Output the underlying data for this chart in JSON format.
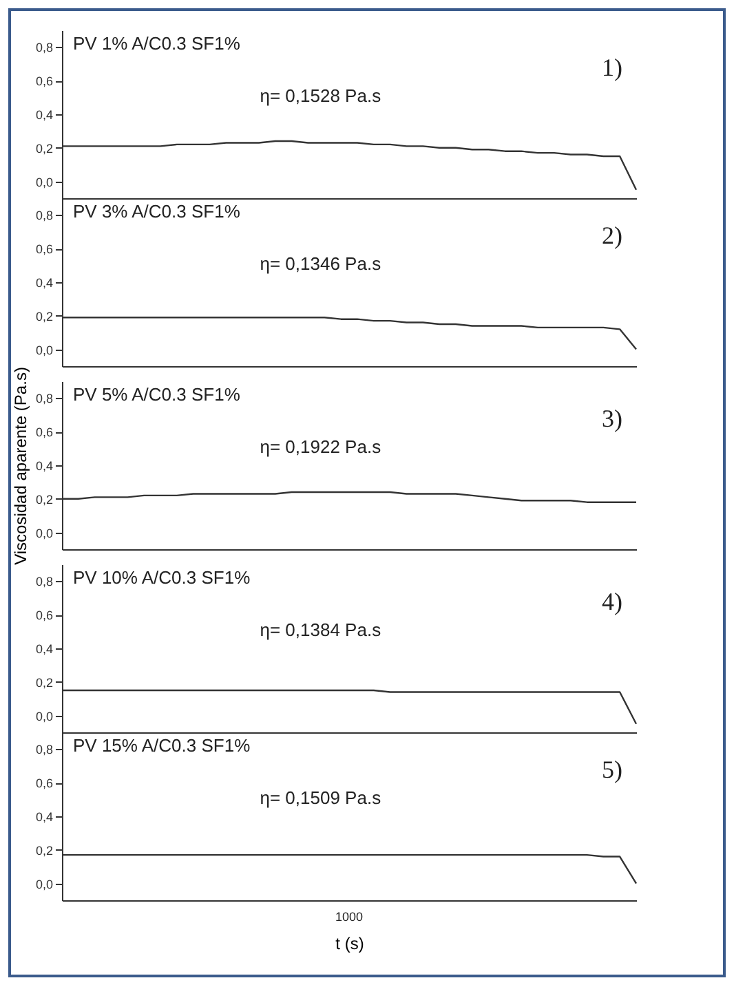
{
  "chart_data": [
    {
      "type": "line",
      "annotations": [
        "PV 1% A/C0.3 SF1%",
        "η= 0,1528 Pa.s",
        "1)"
      ],
      "categories": [
        null,
        null,
        null,
        null,
        null,
        null,
        null,
        null,
        null,
        null,
        null,
        null,
        null,
        null,
        null,
        null,
        null,
        null,
        null,
        null,
        null,
        null,
        null,
        null,
        null,
        null,
        null,
        null,
        null,
        null,
        null,
        null,
        null,
        null,
        null,
        null
      ],
      "series": [
        {
          "color": "#333333",
          "values": [
            0.21,
            0.21,
            0.21,
            0.21,
            0.21,
            0.21,
            0.21,
            0.22,
            0.22,
            0.22,
            0.23,
            0.23,
            0.23,
            0.24,
            0.24,
            0.23,
            0.23,
            0.23,
            0.23,
            0.22,
            0.22,
            0.21,
            0.21,
            0.2,
            0.2,
            0.19,
            0.19,
            0.18,
            0.18,
            0.17,
            0.17,
            0.16,
            0.16,
            0.15,
            0.15,
            -0.05
          ]
        }
      ],
      "ylim": [
        -0.1,
        0.9
      ],
      "yticks": [
        {
          "value": 0,
          "label": "0,0"
        },
        {
          "value": 0.2,
          "label": "0,2"
        },
        {
          "value": 0.4,
          "label": "0,4"
        },
        {
          "value": 0.6,
          "label": "0,6"
        },
        {
          "value": 0.8,
          "label": "0,8"
        }
      ],
      "tick_labels": "y",
      "line_style": "solid"
    },
    {
      "type": "line",
      "annotations": [
        "PV 3% A/C0.3 SF1%",
        "η= 0,1346 Pa.s",
        "2)"
      ],
      "categories": [
        null,
        null,
        null,
        null,
        null,
        null,
        null,
        null,
        null,
        null,
        null,
        null,
        null,
        null,
        null,
        null,
        null,
        null,
        null,
        null,
        null,
        null,
        null,
        null,
        null,
        null,
        null,
        null,
        null,
        null,
        null,
        null,
        null,
        null,
        null,
        null
      ],
      "series": [
        {
          "color": "#333333",
          "values": [
            0.19,
            0.19,
            0.19,
            0.19,
            0.19,
            0.19,
            0.19,
            0.19,
            0.19,
            0.19,
            0.19,
            0.19,
            0.19,
            0.19,
            0.19,
            0.19,
            0.19,
            0.18,
            0.18,
            0.17,
            0.17,
            0.16,
            0.16,
            0.15,
            0.15,
            0.14,
            0.14,
            0.14,
            0.14,
            0.13,
            0.13,
            0.13,
            0.13,
            0.13,
            0.12,
            0.0
          ]
        }
      ],
      "ylim": [
        -0.1,
        0.9
      ],
      "yticks": [
        {
          "value": 0,
          "label": "0,0"
        },
        {
          "value": 0.2,
          "label": "0,2"
        },
        {
          "value": 0.4,
          "label": "0,4"
        },
        {
          "value": 0.6,
          "label": "0,6"
        },
        {
          "value": 0.8,
          "label": "0,8"
        }
      ],
      "tick_labels": "y",
      "line_style": "solid"
    },
    {
      "type": "line",
      "annotations": [
        "PV 5% A/C0.3 SF1%",
        "η= 0,1922 Pa.s",
        "3)"
      ],
      "categories": [
        null,
        null,
        null,
        null,
        null,
        null,
        null,
        null,
        null,
        null,
        null,
        null,
        null,
        null,
        null,
        null,
        null,
        null,
        null,
        null,
        null,
        null,
        null,
        null,
        null,
        null,
        null,
        null,
        null,
        null,
        null,
        null,
        null,
        null,
        null,
        null
      ],
      "series": [
        {
          "color": "#333333",
          "values": [
            0.2,
            0.2,
            0.21,
            0.21,
            0.21,
            0.22,
            0.22,
            0.22,
            0.23,
            0.23,
            0.23,
            0.23,
            0.23,
            0.23,
            0.24,
            0.24,
            0.24,
            0.24,
            0.24,
            0.24,
            0.24,
            0.23,
            0.23,
            0.23,
            0.23,
            0.22,
            0.21,
            0.2,
            0.19,
            0.19,
            0.19,
            0.19,
            0.18,
            0.18,
            0.18,
            0.18
          ]
        }
      ],
      "ylim": [
        -0.1,
        0.9
      ],
      "yticks": [
        {
          "value": 0,
          "label": "0,0"
        },
        {
          "value": 0.2,
          "label": "0,2"
        },
        {
          "value": 0.4,
          "label": "0,4"
        },
        {
          "value": 0.6,
          "label": "0,6"
        },
        {
          "value": 0.8,
          "label": "0,8"
        }
      ],
      "ylabel": "Viscosidad aparente (Pa.s)",
      "tick_labels": "y",
      "line_style": "solid"
    },
    {
      "type": "line",
      "annotations": [
        "PV 10% A/C0.3 SF1%",
        "η= 0,1384 Pa.s",
        "4)"
      ],
      "categories": [
        null,
        null,
        null,
        null,
        null,
        null,
        null,
        null,
        null,
        null,
        null,
        null,
        null,
        null,
        null,
        null,
        null,
        null,
        null,
        null,
        null,
        null,
        null,
        null,
        null,
        null,
        null,
        null,
        null,
        null,
        null,
        null,
        null,
        null,
        null,
        null
      ],
      "series": [
        {
          "color": "#333333",
          "values": [
            0.15,
            0.15,
            0.15,
            0.15,
            0.15,
            0.15,
            0.15,
            0.15,
            0.15,
            0.15,
            0.15,
            0.15,
            0.15,
            0.15,
            0.15,
            0.15,
            0.15,
            0.15,
            0.15,
            0.15,
            0.14,
            0.14,
            0.14,
            0.14,
            0.14,
            0.14,
            0.14,
            0.14,
            0.14,
            0.14,
            0.14,
            0.14,
            0.14,
            0.14,
            0.14,
            -0.05
          ]
        }
      ],
      "ylim": [
        -0.1,
        0.9
      ],
      "yticks": [
        {
          "value": 0,
          "label": "0,0"
        },
        {
          "value": 0.2,
          "label": "0,2"
        },
        {
          "value": 0.4,
          "label": "0,4"
        },
        {
          "value": 0.6,
          "label": "0,6"
        },
        {
          "value": 0.8,
          "label": "0,8"
        }
      ],
      "tick_labels": "y",
      "line_style": "solid"
    },
    {
      "type": "line",
      "annotations": [
        "PV 15% A/C0.3 SF1%",
        "η= 0,1509 Pa.s",
        "5)",
        "1000"
      ],
      "categories": [
        null,
        null,
        null,
        null,
        null,
        null,
        null,
        null,
        null,
        null,
        null,
        null,
        null,
        null,
        null,
        null,
        null,
        null,
        null,
        null,
        null,
        null,
        null,
        null,
        null,
        null,
        null,
        null,
        null,
        null,
        null,
        null,
        null,
        null,
        null,
        null
      ],
      "series": [
        {
          "color": "#333333",
          "values": [
            0.17,
            0.17,
            0.17,
            0.17,
            0.17,
            0.17,
            0.17,
            0.17,
            0.17,
            0.17,
            0.17,
            0.17,
            0.17,
            0.17,
            0.17,
            0.17,
            0.17,
            0.17,
            0.17,
            0.17,
            0.17,
            0.17,
            0.17,
            0.17,
            0.17,
            0.17,
            0.17,
            0.17,
            0.17,
            0.17,
            0.17,
            0.17,
            0.17,
            0.16,
            0.16,
            0.0
          ]
        }
      ],
      "ylim": [
        -0.1,
        0.9
      ],
      "yticks": [
        {
          "value": 0,
          "label": "0,0"
        },
        {
          "value": 0.2,
          "label": "0,2"
        },
        {
          "value": 0.4,
          "label": "0,4"
        },
        {
          "value": 0.6,
          "label": "0,6"
        },
        {
          "value": 0.8,
          "label": "0,8"
        }
      ],
      "xlabel": "t (s)",
      "tick_labels": "y",
      "line_style": "solid"
    }
  ]
}
